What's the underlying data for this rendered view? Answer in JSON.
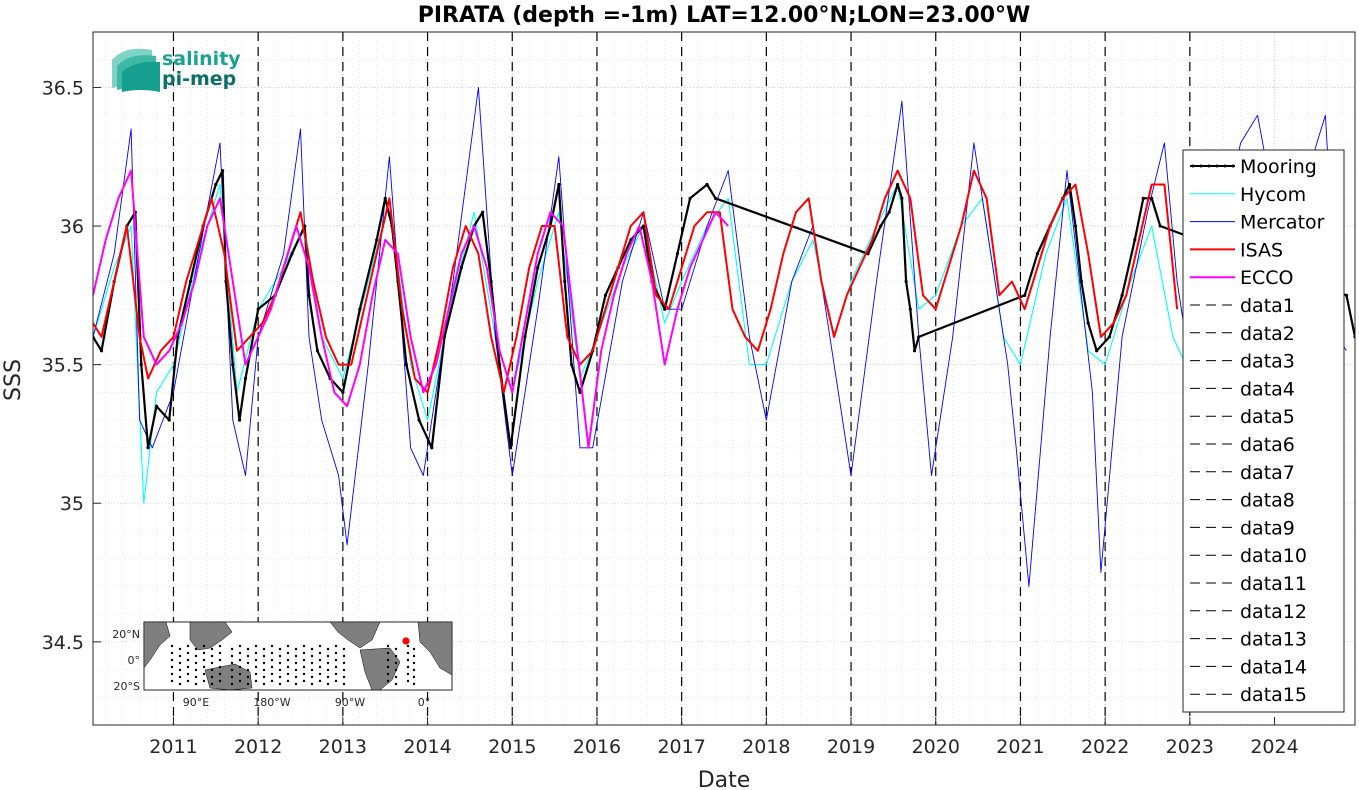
{
  "chart_data": {
    "type": "line",
    "title": "PIRATA (depth =-1m) LAT=12.00°N;LON=23.00°W",
    "xlabel": "Date",
    "ylabel": "SSS",
    "xlim": [
      2010.05,
      2024.95
    ],
    "ylim": [
      34.2,
      36.7
    ],
    "x_ticks": [
      2011,
      2012,
      2013,
      2014,
      2015,
      2016,
      2017,
      2018,
      2019,
      2020,
      2021,
      2022,
      2023,
      2024
    ],
    "x_tick_labels": [
      "2011",
      "2012",
      "2013",
      "2014",
      "2015",
      "2016",
      "2017",
      "2018",
      "2019",
      "2020",
      "2021",
      "2022",
      "2023",
      "2024"
    ],
    "y_ticks": [
      34.5,
      35,
      35.5,
      36,
      36.5
    ],
    "y_tick_labels": [
      "34.5",
      "35",
      "35.5",
      "36",
      "36.5"
    ],
    "grid": true,
    "legend_position": "right",
    "vertical_dashed_lines": [
      2011,
      2012,
      2013,
      2014,
      2015,
      2016,
      2017,
      2018,
      2019,
      2020,
      2021,
      2022,
      2023
    ],
    "series": [
      {
        "name": "Mooring",
        "color": "#000000",
        "style": "solid-dots",
        "x": [
          2010.05,
          2010.15,
          2010.3,
          2010.45,
          2010.55,
          2010.62,
          2010.7,
          2010.8,
          2010.95,
          2011.05,
          2011.2,
          2011.35,
          2011.5,
          2011.58,
          2011.62,
          2011.7,
          2011.78,
          2011.85,
          2012.0,
          2012.2,
          2012.4,
          2012.55,
          2012.6,
          2012.7,
          2012.85,
          2013.0,
          2013.2,
          2013.4,
          2013.5,
          2013.58,
          2013.65,
          2013.75,
          2013.9,
          2014.05,
          2014.2,
          2014.4,
          2014.55,
          2014.65,
          2014.75,
          2014.85,
          2014.98,
          2015.15,
          2015.3,
          2015.45,
          2015.55,
          2015.62,
          2015.7,
          2015.8,
          2015.95,
          2016.1,
          2016.25,
          2016.4,
          2016.55,
          2016.65,
          2016.8,
          2016.95,
          2017.1,
          2017.3,
          2017.4,
          2019.2,
          2019.35,
          2019.45,
          2019.55,
          2019.6,
          2019.65,
          2019.7,
          2019.75,
          2019.8,
          2021.05,
          2021.2,
          2021.35,
          2021.5,
          2021.58,
          2021.65,
          2021.72,
          2021.8,
          2021.9,
          2022.05,
          2022.2,
          2022.35,
          2022.45,
          2022.55,
          2022.65,
          2024.85,
          2024.95
        ],
        "y": [
          35.6,
          35.55,
          35.8,
          36.0,
          36.05,
          35.5,
          35.2,
          35.35,
          35.3,
          35.6,
          35.8,
          36.0,
          36.15,
          36.2,
          35.8,
          35.5,
          35.3,
          35.45,
          35.7,
          35.75,
          35.9,
          36.0,
          35.75,
          35.55,
          35.45,
          35.4,
          35.7,
          35.95,
          36.1,
          36.0,
          35.8,
          35.5,
          35.3,
          35.2,
          35.6,
          35.85,
          36.0,
          36.05,
          35.8,
          35.5,
          35.2,
          35.6,
          35.85,
          36.0,
          36.15,
          35.8,
          35.5,
          35.4,
          35.55,
          35.75,
          35.85,
          35.95,
          36.0,
          35.8,
          35.7,
          35.9,
          36.1,
          36.15,
          36.1,
          35.9,
          36.0,
          36.05,
          36.15,
          36.1,
          35.8,
          35.7,
          35.55,
          35.6,
          35.75,
          35.9,
          36.0,
          36.1,
          36.15,
          36.0,
          35.8,
          35.65,
          35.55,
          35.6,
          35.75,
          35.95,
          36.1,
          36.1,
          36.0,
          35.75,
          35.6
        ]
      },
      {
        "name": "Hycom",
        "color": "#00ffff",
        "style": "solid",
        "x": [
          2010.05,
          2010.3,
          2010.5,
          2010.65,
          2010.8,
          2011.0,
          2011.3,
          2011.55,
          2011.75,
          2012.0,
          2012.3,
          2012.55,
          2012.75,
          2013.0,
          2013.3,
          2013.55,
          2013.8,
          2014.0,
          2014.3,
          2014.55,
          2014.8,
          2015.0,
          2015.3,
          2015.55,
          2015.8,
          2016.0,
          2016.3,
          2016.55,
          2016.8,
          2017.0,
          2017.3,
          2017.55,
          2017.8,
          2018.0,
          2018.3,
          2018.55,
          2018.8,
          2019.0,
          2019.3,
          2019.55,
          2019.8,
          2020.0,
          2020.3,
          2020.55,
          2020.8,
          2021.0,
          2021.3,
          2021.55,
          2021.8,
          2022.0,
          2022.3,
          2022.55,
          2022.8,
          2022.95
        ],
        "y": [
          35.6,
          35.85,
          36.0,
          35.0,
          35.4,
          35.5,
          35.9,
          36.15,
          35.4,
          35.7,
          35.85,
          36.0,
          35.6,
          35.45,
          35.8,
          36.1,
          35.5,
          35.3,
          35.75,
          36.05,
          35.6,
          35.4,
          35.8,
          36.05,
          35.45,
          35.6,
          35.85,
          36.0,
          35.65,
          35.8,
          36.0,
          36.1,
          35.5,
          35.5,
          35.8,
          35.95,
          35.6,
          35.8,
          36.0,
          36.15,
          35.7,
          35.75,
          36.0,
          36.1,
          35.6,
          35.5,
          35.9,
          36.1,
          35.55,
          35.5,
          35.8,
          36.0,
          35.6,
          35.5
        ]
      },
      {
        "name": "Mercator",
        "color": "#0000ff",
        "style": "solid",
        "x": [
          2010.05,
          2010.3,
          2010.5,
          2010.6,
          2010.75,
          2011.0,
          2011.3,
          2011.55,
          2011.7,
          2011.85,
          2012.0,
          2012.3,
          2012.5,
          2012.6,
          2012.75,
          2012.95,
          2013.05,
          2013.3,
          2013.55,
          2013.8,
          2013.95,
          2014.3,
          2014.6,
          2014.8,
          2015.0,
          2015.3,
          2015.55,
          2015.8,
          2015.95,
          2016.3,
          2016.55,
          2016.8,
          2017.0,
          2017.3,
          2017.55,
          2017.8,
          2018.0,
          2018.3,
          2018.55,
          2018.8,
          2019.0,
          2019.3,
          2019.6,
          2019.8,
          2019.95,
          2020.2,
          2020.45,
          2020.65,
          2020.85,
          2020.95,
          2021.1,
          2021.35,
          2021.55,
          2021.7,
          2021.85,
          2021.95,
          2022.2,
          2022.5,
          2022.7,
          2022.85,
          2023.0,
          2023.6,
          2023.8,
          2024.1,
          2024.4,
          2024.6,
          2024.75,
          2024.85
        ],
        "y": [
          35.6,
          35.9,
          36.35,
          35.3,
          35.2,
          35.4,
          35.9,
          36.3,
          35.3,
          35.1,
          35.6,
          35.9,
          36.35,
          35.6,
          35.3,
          35.1,
          34.85,
          35.5,
          36.25,
          35.2,
          35.1,
          35.8,
          36.5,
          35.6,
          35.1,
          35.7,
          36.25,
          35.2,
          35.2,
          35.8,
          36.05,
          35.7,
          35.7,
          36.0,
          36.2,
          35.6,
          35.3,
          35.8,
          36.0,
          35.5,
          35.1,
          35.8,
          36.45,
          35.6,
          35.1,
          35.6,
          36.3,
          35.9,
          35.5,
          35.2,
          34.7,
          35.6,
          36.2,
          35.8,
          35.4,
          34.75,
          35.6,
          36.05,
          36.3,
          35.8,
          35.5,
          36.3,
          36.4,
          35.9,
          36.2,
          36.4,
          35.6,
          35.55
        ]
      },
      {
        "name": "ISAS",
        "color": "#ff0000",
        "style": "solid",
        "x": [
          2010.05,
          2010.15,
          2010.3,
          2010.45,
          2010.6,
          2010.7,
          2010.85,
          2011.0,
          2011.15,
          2011.3,
          2011.45,
          2011.6,
          2011.75,
          2011.9,
          2012.05,
          2012.2,
          2012.35,
          2012.5,
          2012.65,
          2012.8,
          2012.95,
          2013.1,
          2013.25,
          2013.4,
          2013.55,
          2013.7,
          2013.85,
          2014.0,
          2014.15,
          2014.3,
          2014.45,
          2014.6,
          2014.75,
          2014.9,
          2015.05,
          2015.2,
          2015.35,
          2015.5,
          2015.65,
          2015.8,
          2015.95,
          2016.1,
          2016.25,
          2016.4,
          2016.55,
          2016.7,
          2016.85,
          2017.0,
          2017.15,
          2017.3,
          2017.45,
          2017.6,
          2017.75,
          2017.9,
          2018.05,
          2018.2,
          2018.35,
          2018.5,
          2018.65,
          2018.8,
          2018.95,
          2019.1,
          2019.25,
          2019.4,
          2019.55,
          2019.7,
          2019.85,
          2020.0,
          2020.15,
          2020.3,
          2020.45,
          2020.6,
          2020.75,
          2020.9,
          2021.05,
          2021.2,
          2021.35,
          2021.5,
          2021.65,
          2021.8,
          2021.95,
          2022.1,
          2022.25,
          2022.4,
          2022.55,
          2022.7,
          2022.85
        ],
        "y": [
          35.65,
          35.6,
          35.8,
          36.0,
          35.6,
          35.45,
          35.55,
          35.6,
          35.8,
          35.95,
          36.1,
          35.9,
          35.55,
          35.6,
          35.65,
          35.75,
          35.9,
          36.05,
          35.8,
          35.6,
          35.5,
          35.5,
          35.7,
          35.9,
          36.1,
          35.7,
          35.45,
          35.4,
          35.6,
          35.85,
          36.0,
          35.9,
          35.6,
          35.4,
          35.6,
          35.85,
          36.0,
          36.0,
          35.6,
          35.5,
          35.55,
          35.7,
          35.85,
          36.0,
          36.05,
          35.75,
          35.7,
          35.85,
          36.0,
          36.05,
          36.05,
          35.7,
          35.6,
          35.55,
          35.7,
          35.9,
          36.05,
          36.1,
          35.8,
          35.6,
          35.75,
          35.85,
          35.95,
          36.1,
          36.2,
          36.1,
          35.75,
          35.7,
          35.85,
          36.0,
          36.2,
          36.1,
          35.75,
          35.8,
          35.7,
          35.85,
          36.0,
          36.1,
          36.15,
          35.9,
          35.6,
          35.65,
          35.75,
          35.95,
          36.15,
          36.15,
          35.7
        ]
      },
      {
        "name": "ECCO",
        "color": "#ff00ff",
        "style": "solid",
        "x": [
          2010.05,
          2010.2,
          2010.35,
          2010.5,
          2010.65,
          2010.8,
          2010.95,
          2011.1,
          2011.25,
          2011.4,
          2011.55,
          2011.7,
          2011.85,
          2012.0,
          2012.15,
          2012.3,
          2012.45,
          2012.6,
          2012.75,
          2012.9,
          2013.05,
          2013.2,
          2013.35,
          2013.5,
          2013.65,
          2013.8,
          2013.95,
          2014.1,
          2014.25,
          2014.4,
          2014.55,
          2014.7,
          2014.85,
          2015.0,
          2015.15,
          2015.3,
          2015.45,
          2015.6,
          2015.75,
          2015.9,
          2016.05,
          2016.2,
          2016.35,
          2016.5,
          2016.65,
          2016.8,
          2016.95,
          2017.1,
          2017.25,
          2017.4,
          2017.55
        ],
        "y": [
          35.75,
          35.95,
          36.1,
          36.2,
          35.6,
          35.5,
          35.55,
          35.65,
          35.8,
          36.0,
          36.1,
          35.8,
          35.5,
          35.6,
          35.7,
          35.85,
          36.0,
          35.85,
          35.6,
          35.4,
          35.35,
          35.5,
          35.75,
          35.95,
          35.9,
          35.6,
          35.4,
          35.5,
          35.7,
          35.9,
          36.0,
          35.85,
          35.55,
          35.4,
          35.65,
          35.9,
          36.05,
          36.0,
          35.6,
          35.2,
          35.55,
          35.75,
          35.9,
          36.0,
          35.8,
          35.5,
          35.7,
          35.85,
          35.95,
          36.05,
          36.0
        ]
      }
    ],
    "dashed_legend_entries": [
      "data1",
      "data2",
      "data3",
      "data4",
      "data5",
      "data6",
      "data7",
      "data8",
      "data9",
      "data10",
      "data11",
      "data12",
      "data13",
      "data14",
      "data15"
    ],
    "inset_map": {
      "y_tick_labels": [
        "20°N",
        "0°",
        "20°S"
      ],
      "x_tick_labels": [
        "90°E",
        "180°W",
        "90°W",
        "0°"
      ],
      "highlight_color": "#ff0000"
    }
  },
  "logo": {
    "line1": "salinity",
    "line2": "pi-mep"
  }
}
